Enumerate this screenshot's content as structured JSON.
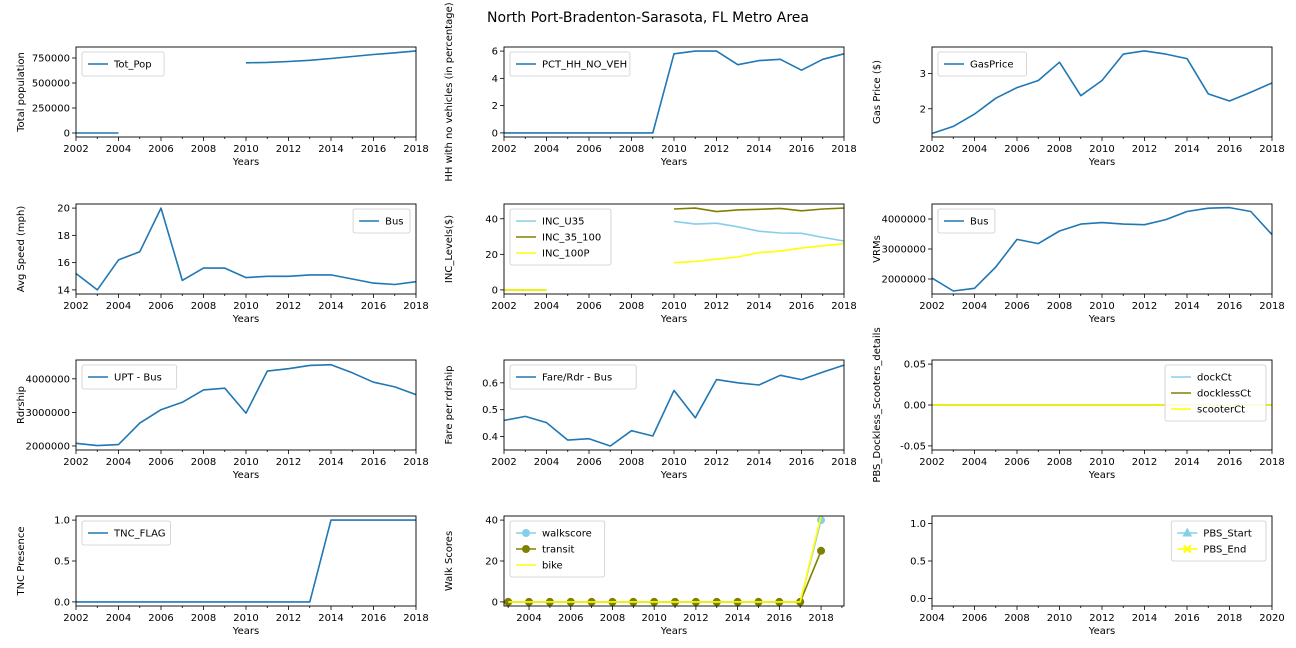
{
  "figure": {
    "title": "North Port-Bradenton-Sarasota, FL Metro Area"
  },
  "chart_data": [
    {
      "type": "line",
      "title": "",
      "xlabel": "Years",
      "ylabel": "Total population",
      "xlim": [
        2002,
        2018
      ],
      "ylim": [
        -40000,
        860000
      ],
      "xticks": [
        2002,
        2004,
        2006,
        2008,
        2010,
        2012,
        2014,
        2016,
        2018
      ],
      "yticks": [
        0,
        250000,
        500000,
        750000
      ],
      "ytick_labels": [
        "0",
        "250000",
        "500000",
        "750000"
      ],
      "legend": "upper left",
      "series": [
        {
          "name": "Tot_Pop",
          "color": "#1f77b4",
          "x": [
            2002,
            2003,
            2004,
            2005,
            2006,
            2007,
            2008,
            2009,
            2010,
            2011,
            2012,
            2013,
            2014,
            2015,
            2016,
            2017,
            2018
          ],
          "y": [
            0,
            0,
            0,
            null,
            null,
            null,
            null,
            null,
            702000,
            706000,
            715000,
            727000,
            745000,
            765000,
            785000,
            802000,
            821000
          ]
        }
      ]
    },
    {
      "type": "line",
      "title": "",
      "xlabel": "Years",
      "ylabel": "HH with no vehicles (in percentage)",
      "xlim": [
        2002,
        2018
      ],
      "ylim": [
        -0.3,
        6.3
      ],
      "xticks": [
        2002,
        2004,
        2006,
        2008,
        2010,
        2012,
        2014,
        2016,
        2018
      ],
      "yticks": [
        0,
        2,
        4,
        6
      ],
      "ytick_labels": [
        "0",
        "2",
        "4",
        "6"
      ],
      "legend": "upper left",
      "series": [
        {
          "name": "PCT_HH_NO_VEH",
          "color": "#1f77b4",
          "x": [
            2002,
            2003,
            2004,
            2005,
            2006,
            2007,
            2008,
            2009,
            2010,
            2011,
            2012,
            2013,
            2014,
            2015,
            2016,
            2017,
            2018
          ],
          "y": [
            0,
            0,
            0,
            0,
            0,
            0,
            0,
            0,
            5.8,
            6.0,
            6.0,
            5.0,
            5.3,
            5.4,
            4.6,
            5.4,
            5.8
          ]
        }
      ]
    },
    {
      "type": "line",
      "title": "",
      "xlabel": "Years",
      "ylabel": "Gas Price ($)",
      "xlim": [
        2002,
        2018
      ],
      "ylim": [
        1.2,
        3.75
      ],
      "xticks": [
        2002,
        2004,
        2006,
        2008,
        2010,
        2012,
        2014,
        2016,
        2018
      ],
      "yticks": [
        2,
        3
      ],
      "ytick_labels": [
        "2",
        "3"
      ],
      "legend": "upper left",
      "series": [
        {
          "name": "GasPrice",
          "color": "#1f77b4",
          "x": [
            2002,
            2003,
            2004,
            2005,
            2006,
            2007,
            2008,
            2009,
            2010,
            2011,
            2012,
            2013,
            2014,
            2015,
            2016,
            2017,
            2018
          ],
          "y": [
            1.3,
            1.5,
            1.85,
            2.3,
            2.6,
            2.8,
            3.32,
            2.37,
            2.8,
            3.55,
            3.64,
            3.55,
            3.42,
            2.42,
            2.22,
            2.47,
            2.73
          ]
        }
      ]
    },
    {
      "type": "line",
      "title": "",
      "xlabel": "Years",
      "ylabel": "Avg Speed (mph)",
      "xlim": [
        2002,
        2018
      ],
      "ylim": [
        13.7,
        20.3
      ],
      "xticks": [
        2002,
        2004,
        2006,
        2008,
        2010,
        2012,
        2014,
        2016,
        2018
      ],
      "yticks": [
        14,
        16,
        18,
        20
      ],
      "ytick_labels": [
        "14",
        "16",
        "18",
        "20"
      ],
      "legend": "upper right",
      "series": [
        {
          "name": "Bus",
          "color": "#1f77b4",
          "x": [
            2002,
            2003,
            2004,
            2005,
            2006,
            2007,
            2008,
            2009,
            2010,
            2011,
            2012,
            2013,
            2014,
            2015,
            2016,
            2017,
            2018
          ],
          "y": [
            15.2,
            14.0,
            16.2,
            16.8,
            20.0,
            14.7,
            15.6,
            15.6,
            14.9,
            15.0,
            15.0,
            15.1,
            15.1,
            14.8,
            14.5,
            14.4,
            14.6
          ]
        }
      ]
    },
    {
      "type": "line",
      "title": "",
      "xlabel": "Years",
      "ylabel": "INC_Levels($)",
      "xlim": [
        2002,
        2018
      ],
      "ylim": [
        -2.3,
        48.3
      ],
      "xticks": [
        2002,
        2004,
        2006,
        2008,
        2010,
        2012,
        2014,
        2016,
        2018
      ],
      "yticks": [
        0,
        20,
        40
      ],
      "ytick_labels": [
        "0",
        "20",
        "40"
      ],
      "legend": "upper left",
      "series": [
        {
          "name": "INC_U35",
          "color": "#87ceeb",
          "x": [
            2002,
            2003,
            2004,
            2005,
            2006,
            2007,
            2008,
            2009,
            2010,
            2011,
            2012,
            2013,
            2014,
            2015,
            2016,
            2017,
            2018
          ],
          "y": [
            0,
            0,
            0,
            null,
            null,
            null,
            null,
            null,
            38.5,
            37.0,
            37.5,
            35.5,
            33.0,
            32.0,
            31.8,
            29.5,
            27.5
          ]
        },
        {
          "name": "INC_35_100",
          "color": "#808000",
          "x": [
            2002,
            2003,
            2004,
            2005,
            2006,
            2007,
            2008,
            2009,
            2010,
            2011,
            2012,
            2013,
            2014,
            2015,
            2016,
            2017,
            2018
          ],
          "y": [
            0,
            0,
            0,
            null,
            null,
            null,
            null,
            null,
            45.5,
            46.0,
            44.0,
            45.0,
            45.3,
            45.8,
            44.5,
            45.5,
            46.0
          ]
        },
        {
          "name": "INC_100P",
          "color": "#ffff00",
          "x": [
            2002,
            2003,
            2004,
            2005,
            2006,
            2007,
            2008,
            2009,
            2010,
            2011,
            2012,
            2013,
            2014,
            2015,
            2016,
            2017,
            2018
          ],
          "y": [
            0,
            0,
            0,
            null,
            null,
            null,
            null,
            null,
            15.3,
            16.0,
            17.3,
            18.5,
            21.0,
            21.8,
            23.5,
            24.8,
            26.0
          ]
        }
      ]
    },
    {
      "type": "line",
      "title": "",
      "xlabel": "Years",
      "ylabel": "VRMs",
      "xlim": [
        2002,
        2018
      ],
      "ylim": [
        1500000,
        4500000
      ],
      "xticks": [
        2002,
        2004,
        2006,
        2008,
        2010,
        2012,
        2014,
        2016,
        2018
      ],
      "yticks": [
        2000000,
        3000000,
        4000000
      ],
      "ytick_labels": [
        "2000000",
        "3000000",
        "4000000"
      ],
      "legend": "upper left",
      "series": [
        {
          "name": "Bus",
          "color": "#1f77b4",
          "x": [
            2002,
            2003,
            2004,
            2005,
            2006,
            2007,
            2008,
            2009,
            2010,
            2011,
            2012,
            2013,
            2014,
            2015,
            2016,
            2017,
            2018
          ],
          "y": [
            2030000,
            1600000,
            1690000,
            2400000,
            3320000,
            3180000,
            3600000,
            3830000,
            3880000,
            3830000,
            3810000,
            3980000,
            4250000,
            4360000,
            4380000,
            4250000,
            3480000
          ]
        }
      ]
    },
    {
      "type": "line",
      "title": "",
      "xlabel": "Years",
      "ylabel": "Rdrship",
      "xlim": [
        2002,
        2018
      ],
      "ylim": [
        1880000,
        4560000
      ],
      "xticks": [
        2002,
        2004,
        2006,
        2008,
        2010,
        2012,
        2014,
        2016,
        2018
      ],
      "yticks": [
        2000000,
        3000000,
        4000000
      ],
      "ytick_labels": [
        "2000000",
        "3000000",
        "4000000"
      ],
      "legend": "upper left",
      "series": [
        {
          "name": "UPT - Bus",
          "color": "#1f77b4",
          "x": [
            2002,
            2003,
            2004,
            2005,
            2006,
            2007,
            2008,
            2009,
            2010,
            2011,
            2012,
            2013,
            2014,
            2015,
            2016,
            2017,
            2018
          ],
          "y": [
            2080000,
            2010000,
            2040000,
            2680000,
            3080000,
            3300000,
            3670000,
            3720000,
            2980000,
            4230000,
            4300000,
            4400000,
            4420000,
            4180000,
            3900000,
            3760000,
            3530000
          ]
        }
      ]
    },
    {
      "type": "line",
      "title": "",
      "xlabel": "Years",
      "ylabel": "Fare per rdrship",
      "xlim": [
        2002,
        2018
      ],
      "ylim": [
        0.35,
        0.685
      ],
      "xticks": [
        2002,
        2004,
        2006,
        2008,
        2010,
        2012,
        2014,
        2016,
        2018
      ],
      "yticks": [
        0.4,
        0.5,
        0.6
      ],
      "ytick_labels": [
        "0.4",
        "0.5",
        "0.6"
      ],
      "legend": "upper left",
      "series": [
        {
          "name": "Fare/Rdr - Bus",
          "color": "#1f77b4",
          "x": [
            2002,
            2003,
            2004,
            2005,
            2006,
            2007,
            2008,
            2009,
            2010,
            2011,
            2012,
            2013,
            2014,
            2015,
            2016,
            2017,
            2018
          ],
          "y": [
            0.46,
            0.475,
            0.452,
            0.387,
            0.392,
            0.365,
            0.422,
            0.402,
            0.572,
            0.47,
            0.612,
            0.6,
            0.592,
            0.628,
            0.612,
            0.64,
            0.666
          ]
        }
      ]
    },
    {
      "type": "line",
      "title": "",
      "xlabel": "Years",
      "ylabel": "PBS_Dockless_Scooters_details",
      "xlim": [
        2002,
        2018
      ],
      "ylim": [
        -0.055,
        0.055
      ],
      "xticks": [
        2002,
        2004,
        2006,
        2008,
        2010,
        2012,
        2014,
        2016,
        2018
      ],
      "yticks": [
        -0.05,
        0,
        0.05
      ],
      "ytick_labels": [
        "-0.05",
        "0.00",
        "0.05"
      ],
      "legend": "upper right",
      "series": [
        {
          "name": "dockCt",
          "color": "#87ceeb",
          "x": [
            2002,
            2003,
            2004,
            2005,
            2006,
            2007,
            2008,
            2009,
            2010,
            2011,
            2012,
            2013,
            2014,
            2015,
            2016,
            2017,
            2018
          ],
          "y": [
            0,
            0,
            0,
            0,
            0,
            0,
            0,
            0,
            0,
            0,
            0,
            0,
            0,
            0,
            0,
            0,
            0
          ]
        },
        {
          "name": "docklessCt",
          "color": "#808000",
          "x": [
            2002,
            2003,
            2004,
            2005,
            2006,
            2007,
            2008,
            2009,
            2010,
            2011,
            2012,
            2013,
            2014,
            2015,
            2016,
            2017,
            2018
          ],
          "y": [
            0,
            0,
            0,
            0,
            0,
            0,
            0,
            0,
            0,
            0,
            0,
            0,
            0,
            0,
            0,
            0,
            0
          ]
        },
        {
          "name": "scooterCt",
          "color": "#ffff00",
          "x": [
            2002,
            2003,
            2004,
            2005,
            2006,
            2007,
            2008,
            2009,
            2010,
            2011,
            2012,
            2013,
            2014,
            2015,
            2016,
            2017,
            2018
          ],
          "y": [
            0,
            0,
            0,
            0,
            0,
            0,
            0,
            0,
            0,
            0,
            0,
            0,
            0,
            0,
            0,
            0,
            0
          ]
        }
      ]
    },
    {
      "type": "line",
      "title": "",
      "xlabel": "Years",
      "ylabel": "TNC Presence",
      "xlim": [
        2002,
        2018
      ],
      "ylim": [
        -0.05,
        1.05
      ],
      "xticks": [
        2002,
        2004,
        2006,
        2008,
        2010,
        2012,
        2014,
        2016,
        2018
      ],
      "yticks": [
        0,
        0.5,
        1
      ],
      "ytick_labels": [
        "0.0",
        "0.5",
        "1.0"
      ],
      "legend": "upper left",
      "series": [
        {
          "name": "TNC_FLAG",
          "color": "#1f77b4",
          "x": [
            2002,
            2003,
            2004,
            2005,
            2006,
            2007,
            2008,
            2009,
            2010,
            2011,
            2012,
            2013,
            2014,
            2015,
            2016,
            2017,
            2018
          ],
          "y": [
            0,
            0,
            0,
            0,
            0,
            0,
            0,
            0,
            0,
            0,
            0,
            0,
            1,
            1,
            1,
            1,
            1
          ]
        }
      ]
    },
    {
      "type": "line",
      "title": "",
      "xlabel": "Years",
      "ylabel": "Walk Scores",
      "xlim": [
        2002.8,
        2019.1
      ],
      "ylim": [
        -2,
        42
      ],
      "xticks": [
        2004,
        2006,
        2008,
        2010,
        2012,
        2014,
        2016,
        2018
      ],
      "yticks": [
        0,
        20,
        40
      ],
      "ytick_labels": [
        "0",
        "20",
        "40"
      ],
      "legend": "upper left",
      "series": [
        {
          "name": "walkscore",
          "color": "#87ceeb",
          "marker": "circle",
          "x": [
            2003,
            2004,
            2005,
            2006,
            2007,
            2008,
            2009,
            2010,
            2011,
            2012,
            2013,
            2014,
            2015,
            2016,
            2017,
            2018
          ],
          "y": [
            0,
            0,
            0,
            0,
            0,
            0,
            0,
            0,
            0,
            0,
            0,
            0,
            0,
            0,
            0,
            40
          ]
        },
        {
          "name": "transit",
          "color": "#808000",
          "marker": "circle",
          "x": [
            2003,
            2004,
            2005,
            2006,
            2007,
            2008,
            2009,
            2010,
            2011,
            2012,
            2013,
            2014,
            2015,
            2016,
            2017,
            2018
          ],
          "y": [
            0,
            0,
            0,
            0,
            0,
            0,
            0,
            0,
            0,
            0,
            0,
            0,
            0,
            0,
            0,
            25
          ]
        },
        {
          "name": "bike",
          "color": "#ffff00",
          "x": [
            2003,
            2004,
            2005,
            2006,
            2007,
            2008,
            2009,
            2010,
            2011,
            2012,
            2013,
            2014,
            2015,
            2016,
            2017,
            2018
          ],
          "y": [
            0,
            0,
            0,
            0,
            0,
            0,
            0,
            0,
            0,
            0,
            0,
            0,
            0,
            0,
            0,
            42
          ]
        }
      ]
    },
    {
      "type": "line",
      "title": "",
      "xlabel": "Years",
      "ylabel": "",
      "xlim": [
        2004,
        2020
      ],
      "ylim": [
        -0.1,
        1.1
      ],
      "xticks": [
        2004,
        2006,
        2008,
        2010,
        2012,
        2014,
        2016,
        2018,
        2020
      ],
      "yticks": [
        0,
        0.5,
        1
      ],
      "ytick_labels": [
        "0.0",
        "0.5",
        "1.0"
      ],
      "legend": "upper right",
      "series": [
        {
          "name": "PBS_Start",
          "color": "#87ceeb",
          "marker": "triangle",
          "x": [],
          "y": []
        },
        {
          "name": "PBS_End",
          "color": "#ffff00",
          "marker": "x",
          "x": [],
          "y": []
        }
      ]
    }
  ]
}
